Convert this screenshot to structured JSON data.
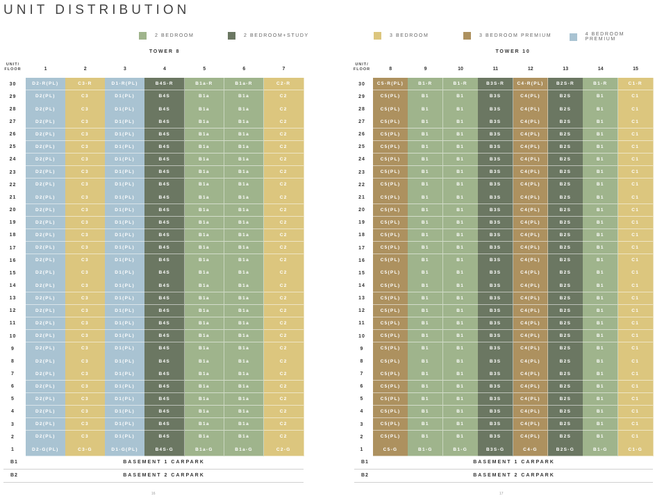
{
  "title": "UNIT DISTRIBUTION",
  "legend": [
    {
      "label": "2 BEDROOM",
      "color": "#9fb48c"
    },
    {
      "label": "2 BEDROOM+STUDY",
      "color": "#6b7762"
    },
    {
      "label": "3 BEDROOM",
      "color": "#dcc67e"
    },
    {
      "label": "3 BEDROOM PREMIUM",
      "color": "#ad915f"
    },
    {
      "label": "4 BEDROOM PREMIUM",
      "color": "#a9c3d2"
    }
  ],
  "unit_floor_label": "UNIT/ FLOOR",
  "floors": [
    "30",
    "29",
    "28",
    "27",
    "26",
    "25",
    "24",
    "23",
    "22",
    "21",
    "20",
    "19",
    "18",
    "17",
    "16",
    "15",
    "14",
    "13",
    "12",
    "11",
    "10",
    "9",
    "8",
    "7",
    "6",
    "5",
    "4",
    "3",
    "2",
    "1"
  ],
  "towers": [
    {
      "name": "TOWER 8",
      "units": [
        {
          "unit": "1",
          "type": 4,
          "top": "D2-R(PL)",
          "mid": "D2(PL)",
          "bottom": "D2-G(PL)"
        },
        {
          "unit": "2",
          "type": 2,
          "top": "C3-R",
          "mid": "C3",
          "bottom": "C3-G"
        },
        {
          "unit": "3",
          "type": 4,
          "top": "D1-R(PL)",
          "mid": "D1(PL)",
          "bottom": "D1-G(PL)"
        },
        {
          "unit": "4",
          "type": 1,
          "top": "B4S-R",
          "mid": "B4S",
          "bottom": "B4S-G"
        },
        {
          "unit": "5",
          "type": 0,
          "top": "B1a-R",
          "mid": "B1a",
          "bottom": "B1a-G"
        },
        {
          "unit": "6",
          "type": 0,
          "top": "B1a-R",
          "mid": "B1a",
          "bottom": "B1a-G"
        },
        {
          "unit": "7",
          "type": 2,
          "top": "C2-R",
          "mid": "C2",
          "bottom": "C2-G"
        }
      ],
      "basements": [
        {
          "floor": "B1",
          "label": "BASEMENT 1 CARPARK"
        },
        {
          "floor": "B2",
          "label": "BASEMENT 2 CARPARK"
        }
      ],
      "page_number": "16"
    },
    {
      "name": "TOWER 10",
      "units": [
        {
          "unit": "8",
          "type": 3,
          "top": "C5-R(PL)",
          "mid": "C5(PL)",
          "bottom": "C5-G"
        },
        {
          "unit": "9",
          "type": 0,
          "top": "B1-R",
          "mid": "B1",
          "bottom": "B1-G"
        },
        {
          "unit": "10",
          "type": 0,
          "top": "B1-R",
          "mid": "B1",
          "bottom": "B1-G"
        },
        {
          "unit": "11",
          "type": 1,
          "top": "B3S-R",
          "mid": "B3S",
          "bottom": "B3S-G"
        },
        {
          "unit": "12",
          "type": 3,
          "top": "C4-R(PL)",
          "mid": "C4(PL)",
          "bottom": "C4-G"
        },
        {
          "unit": "13",
          "type": 1,
          "top": "B2S-R",
          "mid": "B2S",
          "bottom": "B2S-G"
        },
        {
          "unit": "14",
          "type": 0,
          "top": "B1-R",
          "mid": "B1",
          "bottom": "B1-G"
        },
        {
          "unit": "15",
          "type": 2,
          "top": "C1-R",
          "mid": "C1",
          "bottom": "C1-G"
        }
      ],
      "basements": [
        {
          "floor": "B1",
          "label": "BASEMENT 1 CARPARK"
        },
        {
          "floor": "B2",
          "label": "BASEMENT 2 CARPARK"
        }
      ],
      "page_number": "17"
    }
  ]
}
